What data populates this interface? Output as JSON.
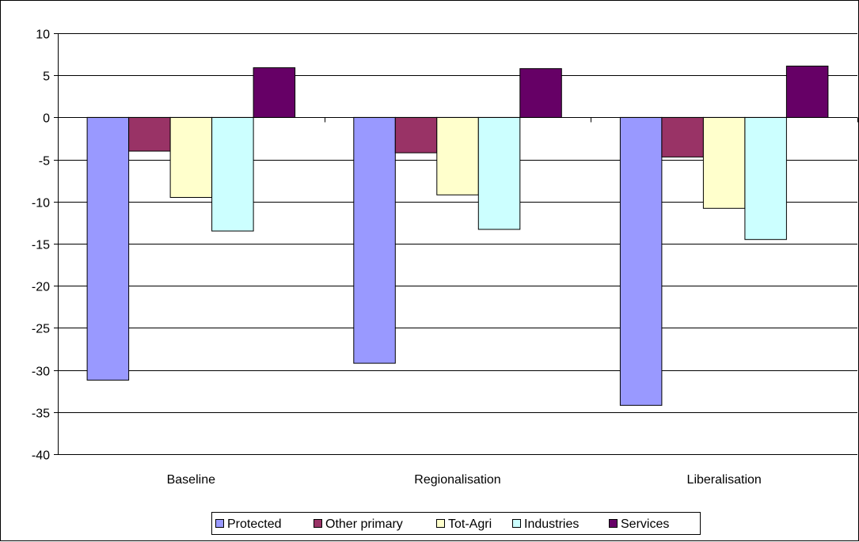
{
  "chart_data": {
    "type": "bar",
    "title": "",
    "xlabel": "",
    "ylabel": "",
    "categories": [
      "Baseline",
      "Regionalisation",
      "Liberalisation"
    ],
    "series": [
      {
        "name": "Protected",
        "color": "#9999FF",
        "values": [
          -31.2,
          -29.2,
          -34.2
        ]
      },
      {
        "name": "Other primary",
        "color": "#993366",
        "values": [
          -4.0,
          -4.2,
          -4.7
        ]
      },
      {
        "name": "Tot-Agri",
        "color": "#FFFFCC",
        "values": [
          -9.5,
          -9.2,
          -10.8
        ]
      },
      {
        "name": "Industries",
        "color": "#CCFFFF",
        "values": [
          -13.5,
          -13.3,
          -14.5
        ]
      },
      {
        "name": "Services",
        "color": "#660066",
        "values": [
          5.9,
          5.8,
          6.1
        ]
      }
    ],
    "ylim": [
      -40,
      10
    ],
    "yticks": [
      10,
      5,
      0,
      -5,
      -10,
      -15,
      -20,
      -25,
      -30,
      -35,
      -40
    ],
    "grid": true,
    "legend_position": "bottom"
  }
}
